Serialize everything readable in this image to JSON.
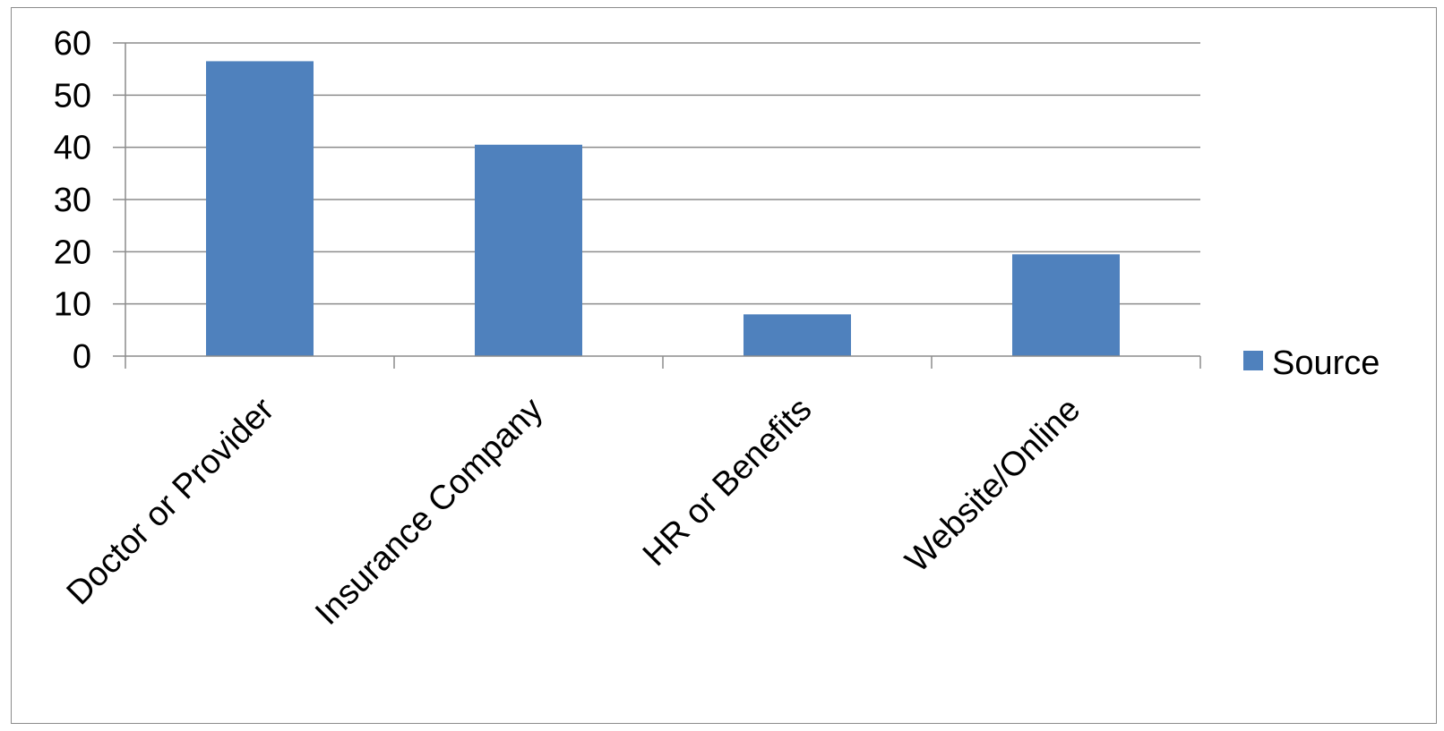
{
  "chart_data": {
    "type": "bar",
    "categories": [
      "Doctor or Provider",
      "Insurance Company",
      "HR or Benefits",
      "Website/Online"
    ],
    "series": [
      {
        "name": "Source",
        "values": [
          56.5,
          40.5,
          8,
          19.5
        ]
      }
    ],
    "ylim": [
      0,
      60
    ],
    "yticks": [
      0,
      10,
      20,
      30,
      40,
      50,
      60
    ],
    "ytick_labels": [
      "0",
      "10",
      "20",
      "30",
      "40",
      "50",
      "60"
    ],
    "grid": true,
    "legend": "right",
    "bar_color": "#4f81bd",
    "grid_color": "#8c8c8c",
    "title": "",
    "xlabel": "",
    "ylabel": ""
  }
}
